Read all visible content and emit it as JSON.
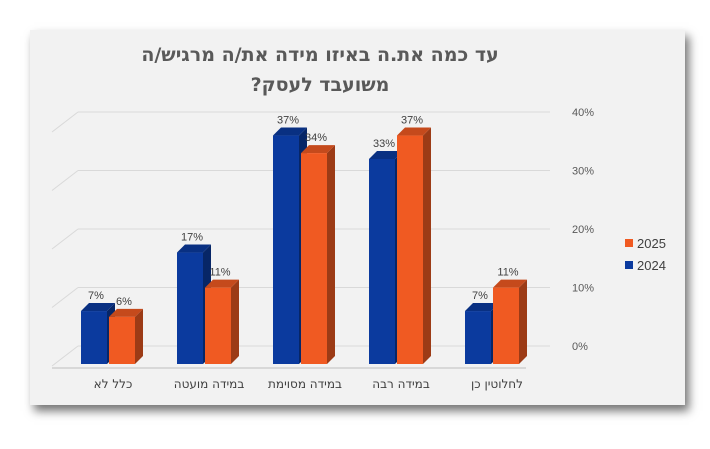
{
  "chart_data": {
    "type": "bar",
    "title_line1": "עד כמה את.ה באיזו מידה את/ה מרגיש/ה",
    "title_line2": "משועבד לעסק?",
    "categories": [
      "לחלוטין כן",
      "במידה רבה",
      "במידה מסוימת",
      "במידה מועטה",
      "כלל לא"
    ],
    "series": [
      {
        "name": "2024",
        "color": "#0b3a9e",
        "values": [
          7,
          33,
          37,
          17,
          7
        ]
      },
      {
        "name": "2025",
        "color": "#f05a22",
        "values": [
          11,
          37,
          34,
          11,
          6
        ]
      }
    ],
    "data_labels": {
      "2024": [
        "7%",
        "33%",
        "37%",
        "17%",
        "7%"
      ],
      "2025": [
        "11%",
        "37%",
        "34%",
        "11%",
        "6%"
      ]
    },
    "y_ticks": [
      "0%",
      "10%",
      "20%",
      "30%",
      "40%"
    ],
    "ylim": [
      0,
      40
    ],
    "grid": true,
    "legend_position": "right"
  }
}
